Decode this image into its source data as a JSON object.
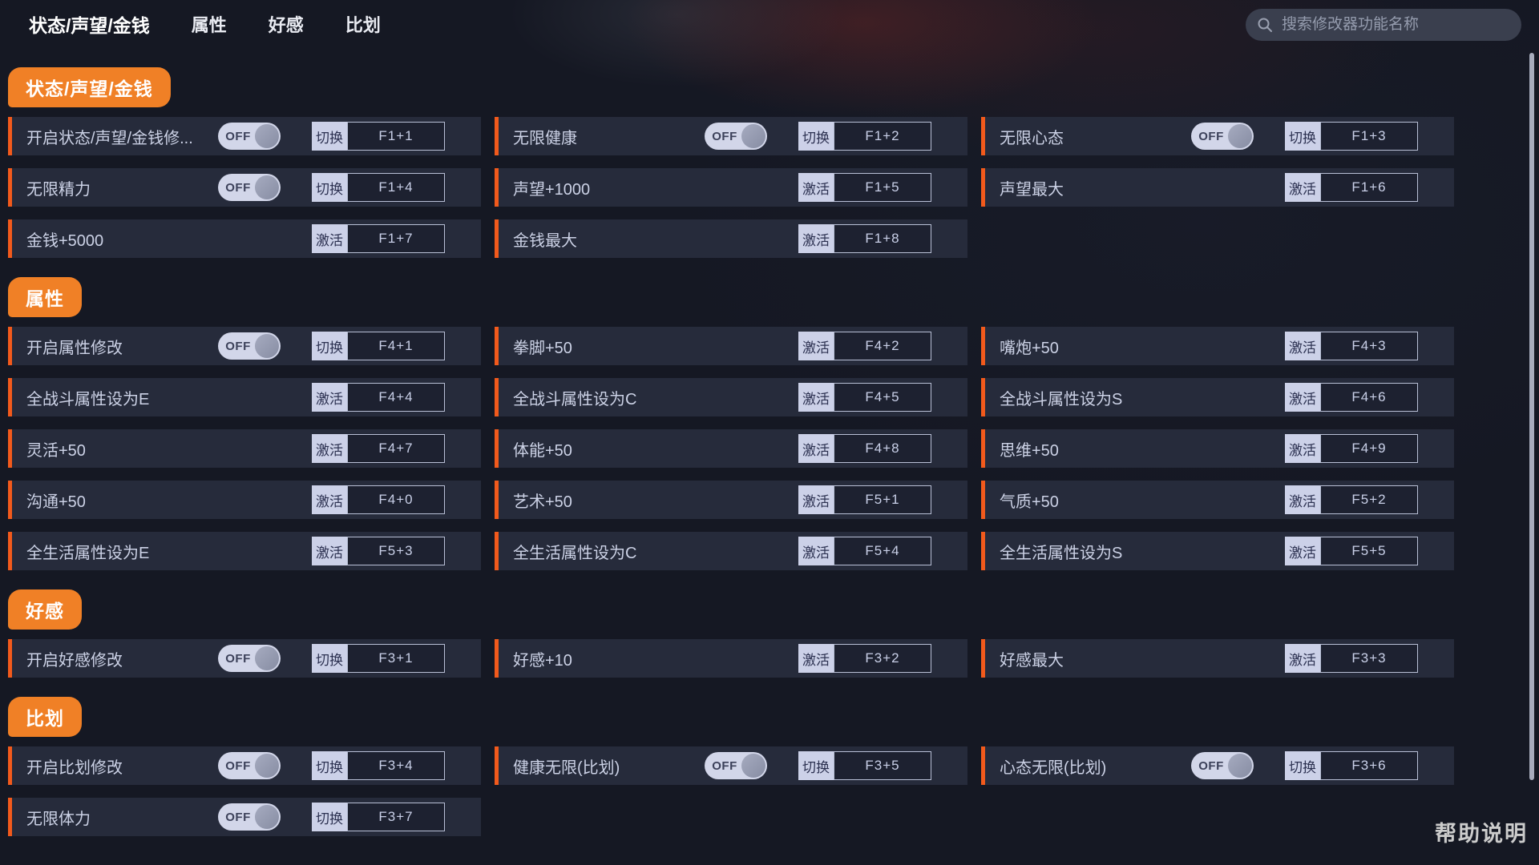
{
  "topbar": {
    "tabs": [
      {
        "label": "状态/声望/金钱",
        "active": true
      },
      {
        "label": "属性",
        "active": false
      },
      {
        "label": "好感",
        "active": false
      },
      {
        "label": "比划",
        "active": false
      }
    ],
    "search": {
      "placeholder": "搜索修改器功能名称",
      "value": ""
    }
  },
  "colors": {
    "background": "#151823",
    "row_background": "#262b3b",
    "badge_orange": "#f08026",
    "accent_bar_orange": "#f25a1c",
    "toggle_pill": "#d2d6e9",
    "button_light": "#ccd1e8"
  },
  "sections": [
    {
      "badge": "状态/声望/金钱",
      "rows": [
        [
          {
            "label": "开启状态/声望/金钱修...",
            "toggle": "OFF",
            "action": "切换",
            "hotkey": "F1+1"
          },
          {
            "label": "无限健康",
            "toggle": "OFF",
            "action": "切换",
            "hotkey": "F1+2"
          },
          {
            "label": "无限心态",
            "toggle": "OFF",
            "action": "切换",
            "hotkey": "F1+3"
          }
        ],
        [
          {
            "label": "无限精力",
            "toggle": "OFF",
            "action": "切换",
            "hotkey": "F1+4"
          },
          {
            "label": "声望+1000",
            "toggle": null,
            "action": "激活",
            "hotkey": "F1+5"
          },
          {
            "label": "声望最大",
            "toggle": null,
            "action": "激活",
            "hotkey": "F1+6"
          }
        ],
        [
          {
            "label": "金钱+5000",
            "toggle": null,
            "action": "激活",
            "hotkey": "F1+7"
          },
          {
            "label": "金钱最大",
            "toggle": null,
            "action": "激活",
            "hotkey": "F1+8"
          },
          null
        ]
      ]
    },
    {
      "badge": "属性",
      "rows": [
        [
          {
            "label": "开启属性修改",
            "toggle": "OFF",
            "action": "切换",
            "hotkey": "F4+1"
          },
          {
            "label": "拳脚+50",
            "toggle": null,
            "action": "激活",
            "hotkey": "F4+2"
          },
          {
            "label": "嘴炮+50",
            "toggle": null,
            "action": "激活",
            "hotkey": "F4+3"
          }
        ],
        [
          {
            "label": "全战斗属性设为E",
            "toggle": null,
            "action": "激活",
            "hotkey": "F4+4"
          },
          {
            "label": "全战斗属性设为C",
            "toggle": null,
            "action": "激活",
            "hotkey": "F4+5"
          },
          {
            "label": "全战斗属性设为S",
            "toggle": null,
            "action": "激活",
            "hotkey": "F4+6"
          }
        ],
        [
          {
            "label": "灵活+50",
            "toggle": null,
            "action": "激活",
            "hotkey": "F4+7"
          },
          {
            "label": "体能+50",
            "toggle": null,
            "action": "激活",
            "hotkey": "F4+8"
          },
          {
            "label": "思维+50",
            "toggle": null,
            "action": "激活",
            "hotkey": "F4+9"
          }
        ],
        [
          {
            "label": "沟通+50",
            "toggle": null,
            "action": "激活",
            "hotkey": "F4+0"
          },
          {
            "label": "艺术+50",
            "toggle": null,
            "action": "激活",
            "hotkey": "F5+1"
          },
          {
            "label": "气质+50",
            "toggle": null,
            "action": "激活",
            "hotkey": "F5+2"
          }
        ],
        [
          {
            "label": "全生活属性设为E",
            "toggle": null,
            "action": "激活",
            "hotkey": "F5+3"
          },
          {
            "label": "全生活属性设为C",
            "toggle": null,
            "action": "激活",
            "hotkey": "F5+4"
          },
          {
            "label": "全生活属性设为S",
            "toggle": null,
            "action": "激活",
            "hotkey": "F5+5"
          }
        ]
      ]
    },
    {
      "badge": "好感",
      "rows": [
        [
          {
            "label": "开启好感修改",
            "toggle": "OFF",
            "action": "切换",
            "hotkey": "F3+1"
          },
          {
            "label": "好感+10",
            "toggle": null,
            "action": "激活",
            "hotkey": "F3+2"
          },
          {
            "label": "好感最大",
            "toggle": null,
            "action": "激活",
            "hotkey": "F3+3"
          }
        ]
      ]
    },
    {
      "badge": "比划",
      "rows": [
        [
          {
            "label": "开启比划修改",
            "toggle": "OFF",
            "action": "切换",
            "hotkey": "F3+4"
          },
          {
            "label": "健康无限(比划)",
            "toggle": "OFF",
            "action": "切换",
            "hotkey": "F3+5"
          },
          {
            "label": "心态无限(比划)",
            "toggle": "OFF",
            "action": "切换",
            "hotkey": "F3+6"
          }
        ],
        [
          {
            "label": "无限体力",
            "toggle": "OFF",
            "action": "切换",
            "hotkey": "F3+7"
          },
          null,
          null
        ]
      ]
    }
  ],
  "footer": {
    "help_label": "帮助说明"
  }
}
